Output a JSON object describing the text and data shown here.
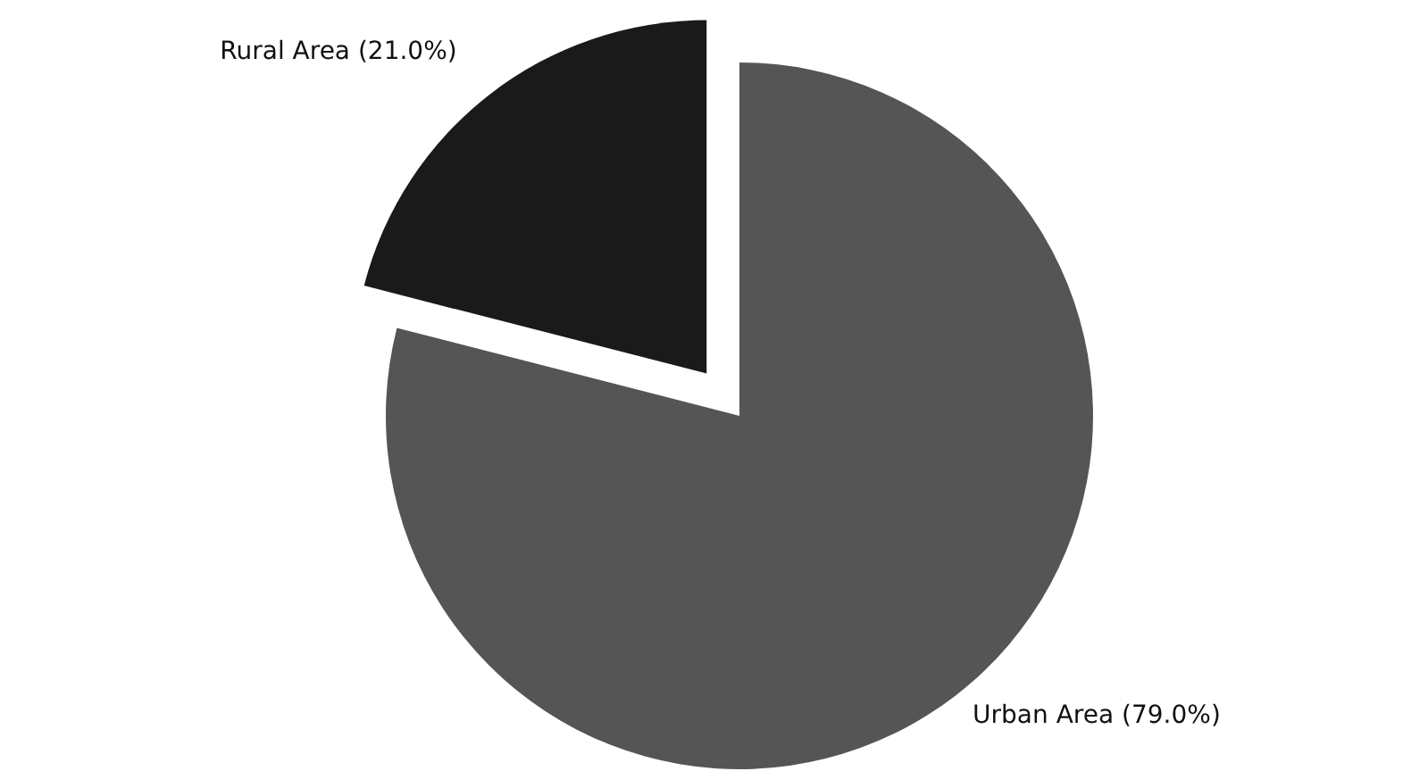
{
  "chart_data": {
    "type": "pie",
    "categories": [
      "Rural Area",
      "Urban Area"
    ],
    "values": [
      21.0,
      79.0
    ],
    "colors": [
      "#1a1a1a",
      "#555555"
    ],
    "value_labels": [
      "(21.0%)",
      "(79.0%)"
    ],
    "legend": false
  }
}
